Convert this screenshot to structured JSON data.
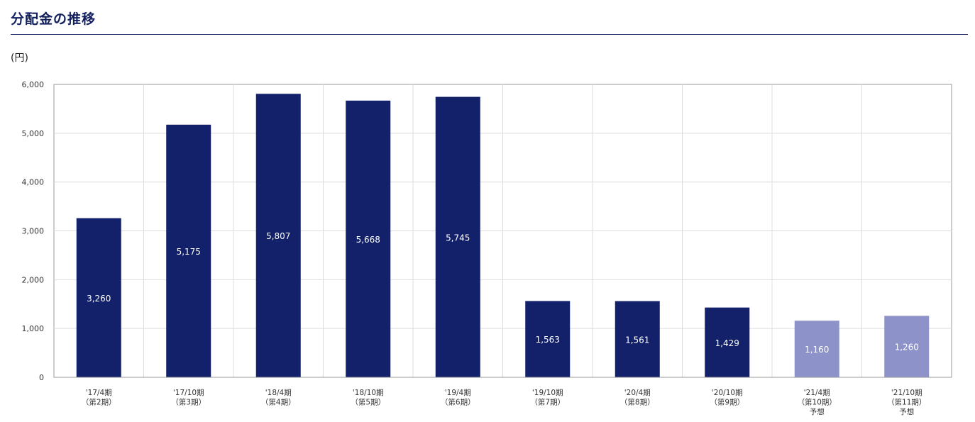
{
  "header": {
    "title": "分配金の推移"
  },
  "chart_data": {
    "type": "bar",
    "unit_label": "(円)",
    "categories": [
      [
        "'17/4期",
        "（第2期）"
      ],
      [
        "'17/10期",
        "（第3期）"
      ],
      [
        "'18/4期",
        "（第4期）"
      ],
      [
        "'18/10期",
        "（第5期）"
      ],
      [
        "'19/4期",
        "（第6期）"
      ],
      [
        "'19/10期",
        "（第7期）"
      ],
      [
        "'20/4期",
        "（第8期）"
      ],
      [
        "'20/10期",
        "（第9期）"
      ],
      [
        "'21/4期",
        "（第10期）",
        "予想"
      ],
      [
        "'21/10期",
        "（第11期）",
        "予想"
      ]
    ],
    "values": [
      3260,
      5175,
      5807,
      5668,
      5745,
      1563,
      1561,
      1429,
      1160,
      1260
    ],
    "value_labels": [
      "3,260",
      "5,175",
      "5,807",
      "5,668",
      "5,745",
      "1,563",
      "1,561",
      "1,429",
      "1,160",
      "1,260"
    ],
    "forecast": [
      false,
      false,
      false,
      false,
      false,
      false,
      false,
      false,
      true,
      true
    ],
    "ylim": [
      0,
      6000
    ],
    "yticks": [
      0,
      1000,
      2000,
      3000,
      4000,
      5000,
      6000
    ],
    "ytick_labels": [
      "0",
      "1,000",
      "2,000",
      "3,000",
      "4,000",
      "5,000",
      "6,000"
    ],
    "grid": true,
    "colors": {
      "actual": "#13206a",
      "forecast": "#8d92c8",
      "grid": "#dcdcdc",
      "axis": "#999999"
    }
  }
}
